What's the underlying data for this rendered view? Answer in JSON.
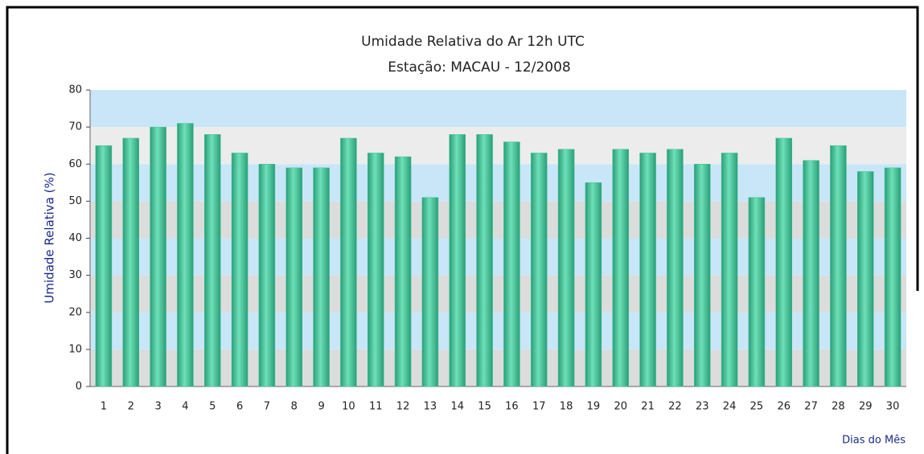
{
  "chart_data": {
    "type": "bar",
    "title": "Umidade Relativa do Ar 12h UTC",
    "subtitle": "Estação: MACAU - 12/2008",
    "y_label": "Umidade Relativa (%)",
    "x_label": "Dias do Mês",
    "categories": [
      "1",
      "2",
      "3",
      "4",
      "5",
      "6",
      "7",
      "8",
      "9",
      "10",
      "11",
      "12",
      "13",
      "14",
      "15",
      "16",
      "17",
      "18",
      "19",
      "20",
      "21",
      "22",
      "23",
      "24",
      "25",
      "26",
      "27",
      "28",
      "29",
      "30"
    ],
    "values": [
      65,
      67,
      70,
      71,
      68,
      63,
      60,
      59,
      59,
      67,
      63,
      62,
      51,
      68,
      68,
      66,
      63,
      64,
      55,
      64,
      63,
      64,
      60,
      63,
      51,
      67,
      61,
      65,
      58,
      59
    ],
    "color": "#3cc497",
    "ylim": [
      0,
      80
    ],
    "yticks": [
      0,
      10,
      20,
      30,
      40,
      50,
      60,
      70,
      80
    ]
  }
}
